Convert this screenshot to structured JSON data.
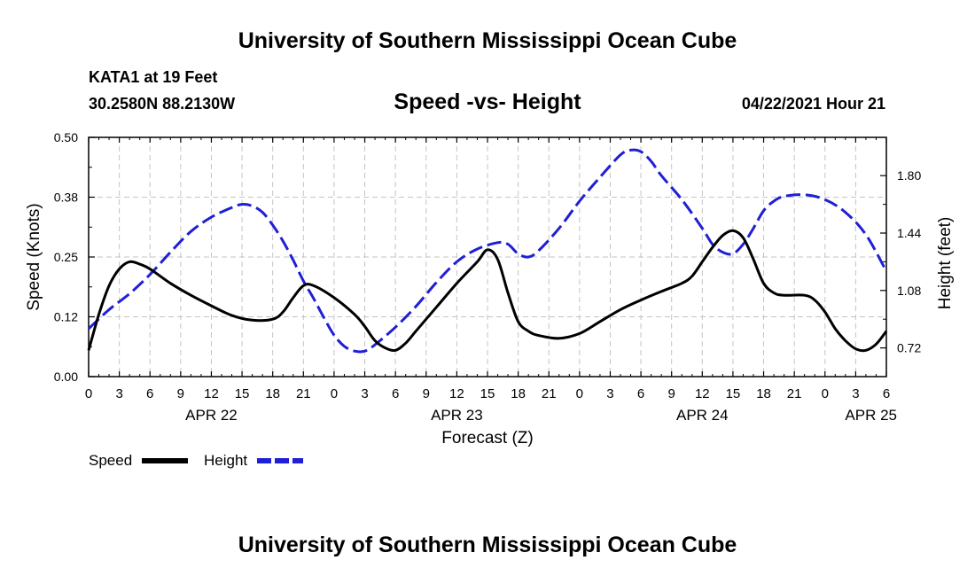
{
  "header": {
    "title": "University of Southern Mississippi Ocean Cube",
    "station": "KATA1 at 19 Feet",
    "location": "30.2580N  88.2130W",
    "plot_title": "Speed -vs- Height",
    "datetime": "04/22/2021 Hour 21"
  },
  "footer": {
    "title": "University of Southern Mississippi Ocean Cube"
  },
  "chart_data": {
    "type": "line",
    "title": "Speed -vs- Height",
    "xlabel": "Forecast (Z)",
    "ylabel_left": "Speed (Knots)",
    "ylabel_right": "Height (feet)",
    "x_range_hours": [
      0,
      78
    ],
    "x_ticks": [
      {
        "h": 0,
        "label": "0"
      },
      {
        "h": 3,
        "label": "3"
      },
      {
        "h": 6,
        "label": "6"
      },
      {
        "h": 9,
        "label": "9"
      },
      {
        "h": 12,
        "label": "12"
      },
      {
        "h": 15,
        "label": "15"
      },
      {
        "h": 18,
        "label": "18"
      },
      {
        "h": 21,
        "label": "21"
      },
      {
        "h": 24,
        "label": "0"
      },
      {
        "h": 27,
        "label": "3"
      },
      {
        "h": 30,
        "label": "6"
      },
      {
        "h": 33,
        "label": "9"
      },
      {
        "h": 36,
        "label": "12"
      },
      {
        "h": 39,
        "label": "15"
      },
      {
        "h": 42,
        "label": "18"
      },
      {
        "h": 45,
        "label": "21"
      },
      {
        "h": 48,
        "label": "0"
      },
      {
        "h": 51,
        "label": "3"
      },
      {
        "h": 54,
        "label": "6"
      },
      {
        "h": 57,
        "label": "9"
      },
      {
        "h": 60,
        "label": "12"
      },
      {
        "h": 63,
        "label": "15"
      },
      {
        "h": 66,
        "label": "18"
      },
      {
        "h": 69,
        "label": "21"
      },
      {
        "h": 72,
        "label": "0"
      },
      {
        "h": 75,
        "label": "3"
      },
      {
        "h": 78,
        "label": "6"
      }
    ],
    "date_labels": [
      {
        "h": 12,
        "label": "APR 22"
      },
      {
        "h": 36,
        "label": "APR 23"
      },
      {
        "h": 60,
        "label": "APR 24"
      },
      {
        "h": 76.5,
        "label": "APR 25"
      }
    ],
    "ylim_left": [
      0,
      0.5
    ],
    "yticks_left": [
      {
        "v": 0,
        "label": "0.00"
      },
      {
        "v": 0.125,
        "label": "0.12"
      },
      {
        "v": 0.25,
        "label": "0.25"
      },
      {
        "v": 0.375,
        "label": "0.38"
      },
      {
        "v": 0.5,
        "label": "0.50"
      }
    ],
    "ylim_right": [
      0.54,
      2.04
    ],
    "yticks_right": [
      {
        "v": 0.72,
        "label": "0.72"
      },
      {
        "v": 1.08,
        "label": "1.08"
      },
      {
        "v": 1.44,
        "label": "1.44"
      },
      {
        "v": 1.8,
        "label": "1.80"
      }
    ],
    "series": [
      {
        "name": "Speed",
        "axis": "left",
        "color": "#000000",
        "dash": false,
        "x": [
          0,
          1,
          2,
          3,
          4,
          5,
          6,
          8,
          10,
          12,
          14,
          16,
          18,
          19,
          20,
          21,
          22,
          24,
          26,
          27,
          28,
          29,
          30,
          31,
          32,
          34,
          36,
          38,
          39,
          40,
          41,
          42,
          43,
          44,
          46,
          48,
          50,
          52,
          54,
          56,
          58,
          59,
          60,
          61,
          62,
          63,
          64,
          65,
          66,
          67,
          68,
          70,
          71,
          72,
          73,
          74,
          75,
          76,
          77,
          78
        ],
        "values": [
          0.055,
          0.13,
          0.19,
          0.225,
          0.24,
          0.235,
          0.225,
          0.195,
          0.17,
          0.148,
          0.128,
          0.118,
          0.12,
          0.135,
          0.165,
          0.19,
          0.19,
          0.165,
          0.13,
          0.105,
          0.075,
          0.06,
          0.055,
          0.07,
          0.095,
          0.145,
          0.195,
          0.24,
          0.265,
          0.245,
          0.175,
          0.115,
          0.095,
          0.086,
          0.08,
          0.09,
          0.115,
          0.14,
          0.16,
          0.178,
          0.195,
          0.21,
          0.24,
          0.27,
          0.295,
          0.305,
          0.29,
          0.245,
          0.195,
          0.175,
          0.17,
          0.17,
          0.16,
          0.135,
          0.1,
          0.075,
          0.058,
          0.055,
          0.068,
          0.095
        ]
      },
      {
        "name": "Height",
        "axis": "right",
        "color": "#1f1fd6",
        "dash": true,
        "x": [
          0,
          2,
          4,
          6,
          8,
          10,
          12,
          14,
          15,
          16,
          17,
          18,
          19,
          20,
          21,
          22,
          23,
          24,
          25,
          26,
          27,
          28,
          30,
          32,
          34,
          36,
          38,
          40,
          41,
          42,
          43,
          44,
          46,
          48,
          50,
          52,
          53,
          54,
          55,
          56,
          58,
          60,
          61,
          62,
          63,
          64,
          65,
          66,
          67,
          68,
          70,
          72,
          74,
          76,
          78
        ],
        "values": [
          0.84,
          0.96,
          1.06,
          1.18,
          1.32,
          1.45,
          1.54,
          1.6,
          1.62,
          1.61,
          1.57,
          1.49,
          1.39,
          1.27,
          1.14,
          1.03,
          0.91,
          0.8,
          0.73,
          0.7,
          0.7,
          0.74,
          0.85,
          0.98,
          1.13,
          1.26,
          1.34,
          1.38,
          1.37,
          1.31,
          1.29,
          1.33,
          1.47,
          1.64,
          1.79,
          1.93,
          1.96,
          1.95,
          1.89,
          1.8,
          1.65,
          1.47,
          1.37,
          1.32,
          1.31,
          1.37,
          1.47,
          1.58,
          1.64,
          1.67,
          1.68,
          1.65,
          1.57,
          1.43,
          1.2
        ]
      }
    ],
    "legend": [
      {
        "label": "Speed",
        "color": "#000000",
        "dash": false
      },
      {
        "label": "Height",
        "color": "#1f1fd6",
        "dash": true
      }
    ]
  }
}
